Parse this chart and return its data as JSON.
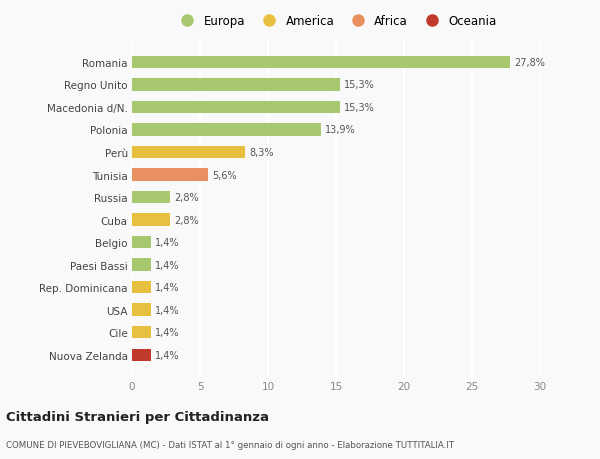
{
  "categories": [
    "Nuova Zelanda",
    "Cile",
    "USA",
    "Rep. Dominicana",
    "Paesi Bassi",
    "Belgio",
    "Cuba",
    "Russia",
    "Tunisia",
    "Perù",
    "Polonia",
    "Macedonia d/N.",
    "Regno Unito",
    "Romania"
  ],
  "values": [
    1.4,
    1.4,
    1.4,
    1.4,
    1.4,
    1.4,
    2.8,
    2.8,
    5.6,
    8.3,
    13.9,
    15.3,
    15.3,
    27.8
  ],
  "labels": [
    "1,4%",
    "1,4%",
    "1,4%",
    "1,4%",
    "1,4%",
    "1,4%",
    "2,8%",
    "2,8%",
    "5,6%",
    "8,3%",
    "13,9%",
    "15,3%",
    "15,3%",
    "27,8%"
  ],
  "colors": [
    "#c0392b",
    "#e8c040",
    "#e8c040",
    "#e8c040",
    "#a8c870",
    "#a8c870",
    "#e8c040",
    "#a8c870",
    "#e89060",
    "#e8c040",
    "#a8c870",
    "#a8c870",
    "#a8c870",
    "#a8c870"
  ],
  "legend_labels": [
    "Europa",
    "America",
    "Africa",
    "Oceania"
  ],
  "legend_colors": [
    "#a8c870",
    "#e8c040",
    "#e89060",
    "#c0392b"
  ],
  "xlim": [
    0,
    30
  ],
  "xticks": [
    0,
    5,
    10,
    15,
    20,
    25,
    30
  ],
  "title": "Cittadini Stranieri per Cittadinanza",
  "subtitle": "COMUNE DI PIEVEBOVIGLIANA (MC) - Dati ISTAT al 1° gennaio di ogni anno - Elaborazione TUTTITALIA.IT",
  "background_color": "#f9f9f9",
  "grid_color": "#ffffff",
  "bar_height": 0.55
}
